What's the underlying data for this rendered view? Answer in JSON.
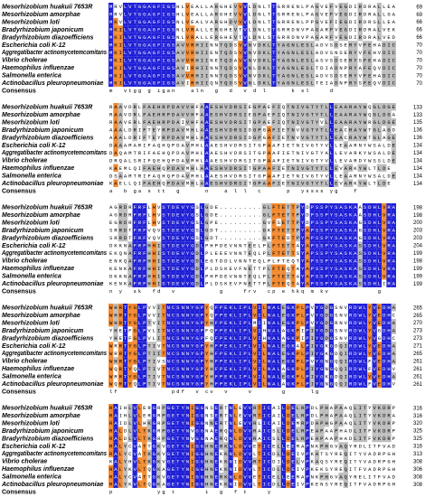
{
  "species": [
    "Mesorhizobium huakuii 7653R",
    "Mesorhizobium amorphae",
    "Mesorhizobium loti",
    "Bradyrhizobium japonicum",
    "Bradyrhizobium diazoefficiens",
    "Escherichia coli K-12",
    "Aggregatibacter actinomycetemcomitans",
    "Vibrio cholerae",
    "Haemophilus influenzae",
    "Salmonella enterica",
    "Actinobacillus pleuropneumoniae"
  ],
  "consensus_label": "Consensus",
  "blocks": [
    {
      "rows": [
        {
          "seq": "MRVLVTGGAGFIGSHLVEALLARGHEVVVLDNLTTGRRENLPAGVEFVEGDIRDRALLEA",
          "end": "69"
        },
        {
          "seq": "MRVLVTGGAGFIGSHLVEALLARGHEVVVLDNLTTGRRENLPAGVEFVEGDIRDRALLGA",
          "end": "69"
        },
        {
          "seq": "MKVLVTGGAGFIGSNLVEALVARGHDVVVLDNLTTGRRENLPPGVEFIEGDIRDRSLLEA",
          "end": "66"
        },
        {
          "seq": "MKILVTGGAGFIGSNLVRALLERGHEVTVLDNLSTGRRDNVPAGARFVEGDIRDRALVEK",
          "end": "66"
        },
        {
          "seq": "MKILVTGGAGFIGSNLVRALLERGHEVTVLDNLSTGRRDNVPAGARFVEGDIRDRALVED",
          "end": "66"
        },
        {
          "seq": "MKILVTGGAGFIGSAVVRHIINNTQDSVVNVDKLTYAGNLESLADVSDSERYVFEHADIC",
          "end": "70"
        },
        {
          "seq": "MKILVTGGAGFIGSAVVRHIIENTQDSVVNVDKLTYAGNLESLADVSNSERYVFEHVDIC",
          "end": "70"
        },
        {
          "seq": "MKILVTGGAGFIGSAVVRHIINETQDAVVNVDKLTYAGNLESLASVSDSERYSFEHADIC",
          "end": "70"
        },
        {
          "seq": "MKILVTGGAGFIGSAVIRHIINNTQDSVVNLDKLTYAGNLESLTDIADNPRYAFEQVDIC",
          "end": "70"
        },
        {
          "seq": "MKILVTGGAGFIGSAVVRHIINNTQDSVVNVDKLTYAGNLESLADVSDSERYVFEHADIC",
          "end": "70"
        },
        {
          "seq": "MKILVTGGAGFIGSAVIRHIIQNTQDSVVNLDKLTYAGNLESLTEIADNPRYSFEQVDIC",
          "end": "70"
        }
      ],
      "consensus": "m  vtgg g igan   aln  g  d  v d l     k sl    d"
    },
    {
      "rows": [
        {
          "seq": "RAAVDRLFAEHRPDAVVHFAAESHVDRSIEGPAEFIQTNIVGTYTLLEAARAYWQGLDGE",
          "end": "133"
        },
        {
          "seq": "RAAVDRLFAEHRPDAVVHFAAESHVDRSIEGPAEFIQTNIVGTYTLLEAARAYWQGLDGA",
          "end": "133"
        },
        {
          "seq": "RAAVERLFAEHRPDAIVHFAAESHVDRSITGPAEFIQTNIVGTYVLLEAARAYWRGLDGE",
          "end": "135"
        },
        {
          "seq": "AAALDRIFTEYRPDAVMHLAAESHVDRSIDGPGAFIETNVVGTYTLLEACRAYWTGLAGD",
          "end": "136"
        },
        {
          "seq": "AAALDRIFTEYRPDAVMHLAAESHVDRSIDGPGAFIETNVVGTYTLLEACRAYWTGLAGE",
          "end": "136"
        },
        {
          "seq": "DAAAMARIFAQHQPDAVMHLAAESHVDRSITGPAAFIETNIVGTYVLLEAARNYWSALDE",
          "end": "134"
        },
        {
          "seq": "DAQAMTRIFAEHQPDAVMHLAAESHVDRSITGPAAFIETNIVGTYALLEVARKYWSALDE",
          "end": "134"
        },
        {
          "seq": "DRQALSRIFQEHQPDAVMHLAAESHVDRSITGPAAFIETNIVGTYVLLEVARDYWSSLDE",
          "end": "134"
        },
        {
          "seq": "KAEMLQIFAEHQPDAVMHLAAESHVDRSITGPAAFIETNIVGTYTLLEVARKYWLTLDE",
          "end": "134"
        },
        {
          "seq": "DSAAMTRIFAQHQPDAVMHLAAESHVDRSITGPAAFIETNIVGTYVLLEAARNYWSALDE",
          "end": "134"
        },
        {
          "seq": "KAELLQIFAEHQPDAVMHLAAESHVDRSITGPAAFIETNIVGTYTLLEVARKYWLTLDE",
          "end": "134"
        }
      ],
      "consensus": "a  b ga s tt  g     n   a l l  c     p  yssss yg   f"
    },
    {
      "rows": [
        {
          "seq": "AGRDRFRFLHVSTDEVYGSLGDE.........GLFTETTPYDPSSPYSASKAASDHLVRA",
          "end": "198"
        },
        {
          "seq": "AGRDRFRFLHVSTDEVYGSLGDE.........GLFTETTPYDPSSPYSASKAASDHLVRA",
          "end": "198"
        },
        {
          "seq": "EGRDRFRFLHVSTDEVYGSLGPE.........GVFSETTPYDPSSPYSASKAGSDHLVRA",
          "end": "200"
        },
        {
          "seq": "SRRDTFRFVQVSTDEVYGSLGDT.........GKFTETTPYAPSSPYSASKAGSDHLVRA",
          "end": "203"
        },
        {
          "seq": "SRRDTFRFVQVSTDEVYGSLGDT.........GKFTEDTPYAPSSPYSASKAGSDHLVRA",
          "end": "203"
        },
        {
          "seq": "DKKNAFRFHHISTDEVYGDLPHPDEVNNTEELPLFTETTAYAPSSPYSASKASSDHLVRA",
          "end": "204"
        },
        {
          "seq": "EKQNAFRFHHISTDEVYGDLPLEEEVNNTEQLPLFTETTSYAPSSPYSASKASSDHLVRA",
          "end": "199"
        },
        {
          "seq": "ENKQAFRFHHISTDEVYGDLEGTDDLVNNTEQLPLFTEQTYAPSSPYSASKASSDHLVRA",
          "end": "198"
        },
        {
          "seq": "KENKAFRFHHISTDEVYGDLPLDSKEVFNETTPLFTEQTAYAPSSPYSASKASSDHLVRA",
          "end": "199"
        },
        {
          "seq": "DKKNAFRFHHISTDEVYGDLPHPDEVNNTEQLPLFTETTAYAPSSPYSASKASSDHLVRA",
          "end": "199"
        },
        {
          "seq": "KENKAFRFHHISTDEVYGDLPLDSKEVFNETTPLFTEQTAYAPSSPYSASKASSDHLIRA",
          "end": "199"
        }
      ],
      "consensus": "n y  sk  fd  v         g    frv  cp e hkq m kv          g"
    },
    {
      "rows": [
        {
          "seq": "WHRTYGLPVVITNCSNNYGPYQFPEKLIPLVILNALEGKPLPVYGDGSNVRDWLYVEDHA",
          "end": "265"
        },
        {
          "seq": "WHRTYGLPVVITNCSNNYGPYQFPEKLIPLVILNALEGKPLPVYGDGSNVRDWLYVEDHC",
          "end": "265"
        },
        {
          "seq": "WHRTYGLPTVITNCSNNYGPYHFPEKLIPLMIINALEGKPLPVYGDGRNVRDWLYVEDHA",
          "end": "270"
        },
        {
          "seq": "YHETFGLPVLITNCSNNYGPFQFPEKLIPLVIHNALAGKPIPIYGDGSNVRDWLYVGDHA",
          "end": "273"
        },
        {
          "seq": "YHETFGLPVLITNCSNNYGPFQFPEKLIPLVIHNALAGKPIPIYGDGSNVRDWLYVGDHC",
          "end": "273"
        },
        {
          "seq": "WRRTYGLPTIVTNCSNNYGPYHFPEKLIPLVILNALEGKALPIYGKGDQIRDWLYVEDHA",
          "end": "271"
        },
        {
          "seq": "WRRTYGLPTIITNCSNNYGPYHFPEKLIPLVILNALEGKPLPIYGKGDQIRDWLYVEDHA",
          "end": "265"
        },
        {
          "seq": "WHRTYGLPTIVSNCSNNYGPYHFPEKLIPLVILNALEGKPLPVYGNGQQIRDWLFVEDHA",
          "end": "261"
        },
        {
          "seq": "WQRTYQLPTIVTNCSNNYGPYHFPEKLIPLVILNALAGKPLPIYGNGQQIRDWLFVEDHV",
          "end": "261"
        },
        {
          "seq": "WRRTYGLPTIVTNCSNNYGPYHFPEKLIPLVILNALEGKPLPIYGKGDQIRDWLYVEDHA",
          "end": "261"
        },
        {
          "seq": "WQRTYQLPTIVTNCSNNYGPYHFPEKLIPLVILNALAGKPLPIYGNGQQIRDWLFVEDHV",
          "end": "261"
        }
      ],
      "consensus": "lf           pdf  v cv  v    v      g     lg"
    },
    {
      "rows": [
        {
          "seq": "RAIHLVLERGRPGETYNIGGNSERTNLEVVRTICAILDELRPDLPHAPAAQLITYVKDRP",
          "end": "316"
        },
        {
          "seq": "RAIHLVLERGRPGETYNIGGNSERTNLEVVRTICAILDELRPDLPHAPAAQLITYVKDRA",
          "end": "316"
        },
        {
          "seq": "RAIDLVLHKGRPGETYNIGGNNERTNLEVVRLICAILDEMRPDAPHGPAAQLITYVKDRP",
          "end": "320"
        },
        {
          "seq": "RALDLVLTKGRPGETYNVGGNAERQNLDVVRAICSLLDELRPEAPAAPHADLITFVKDRP",
          "end": "325"
        },
        {
          "seq": "RALDLVLTKGRPGETYNVGGNAERQNLDVVRAICSLLDELRPEAPAAPHADLITFVKDRP",
          "end": "325"
        },
        {
          "seq": "RALYCVATTGKVGETYNIGGHNERKNLDVVETICELLEEMAPNKPHGVAQYRDLITFVAD",
          "end": "316"
        },
        {
          "seq": "RALYCVATKGKVGETYNIGGHNEKKNLDVVLTICDLLDEIVPKATSYREQITYVADRPGH",
          "end": "313"
        },
        {
          "seq": "KALYHVLTKGKVGETYNIGGHNEKKNIDVVRTICDILDELVPKAQSYREQITYVADRPGH",
          "end": "308"
        },
        {
          "seq": "RALYKVLTQGKAGETYNIGGHNEKKNIDVVLTICDLLDEIVPKEKSYREQITFVADRPGH",
          "end": "306"
        },
        {
          "seq": "RALYCVATTGKVGETYNIGGHNERKNLDVVETICELLEEMAPNKPHGVAQYRELITFVAD",
          "end": "308"
        },
        {
          "seq": "RALYKVLTQGKAGETYNIGGHNEKKNIDVVLTICDLLDEIVPKENSYREQITFVADRPGH",
          "end": "308"
        }
      ],
      "consensus": "p         yg t      i  g  f t    y"
    }
  ]
}
